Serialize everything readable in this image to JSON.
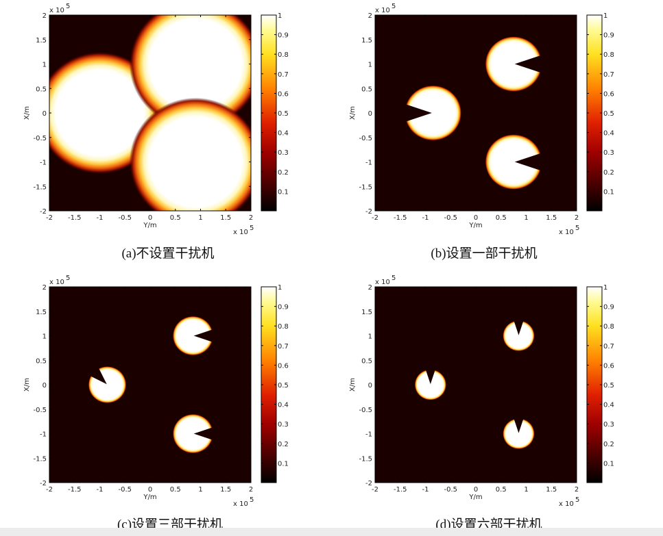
{
  "chart_data": [
    {
      "type": "heatmap",
      "caption": "(a)不设置干扰机",
      "xlabel": "Y/m",
      "ylabel": "X/m",
      "x_exponent": "x 10",
      "x_exponent_power": "5",
      "y_exponent": "x 10",
      "y_exponent_power": "5",
      "xlim": [
        -2,
        2
      ],
      "ylim": [
        -2,
        2
      ],
      "xticks": [
        "-2",
        "-1.5",
        "-1",
        "-0.5",
        "0",
        "0.5",
        "1",
        "1.5",
        "2"
      ],
      "yticks": [
        "2",
        "1.5",
        "1",
        "0.5",
        "0",
        "-0.5",
        "-1",
        "-1.5",
        "-2"
      ],
      "colorbar": {
        "range": [
          0,
          1
        ],
        "ticks": [
          "1",
          "0.9",
          "0.8",
          "0.7",
          "0.6",
          "0.5",
          "0.4",
          "0.3",
          "0.2",
          "0.1"
        ]
      },
      "blobs": [
        {
          "x": -1.0,
          "y": 0.0,
          "r": 1.0,
          "notch": "none"
        },
        {
          "x": 0.9,
          "y": 1.0,
          "r": 1.05,
          "notch": "none"
        },
        {
          "x": 0.9,
          "y": -1.0,
          "r": 1.05,
          "notch": "none"
        }
      ]
    },
    {
      "type": "heatmap",
      "caption": "(b)设置一部干扰机",
      "xlabel": "Y/m",
      "ylabel": "X/m",
      "x_exponent": "x 10",
      "x_exponent_power": "5",
      "y_exponent": "x 10",
      "y_exponent_power": "5",
      "xlim": [
        -2,
        2
      ],
      "ylim": [
        -2,
        2
      ],
      "xticks": [
        "-2",
        "-1.5",
        "-1",
        "-0.5",
        "0",
        "0.5",
        "1",
        "1.5",
        "2"
      ],
      "yticks": [
        "2",
        "1.5",
        "1",
        "0.5",
        "0",
        "-0.5",
        "-1",
        "-1.5",
        "-2"
      ],
      "colorbar": {
        "range": [
          0,
          1
        ],
        "ticks": [
          "1",
          "0.9",
          "0.8",
          "0.7",
          "0.6",
          "0.5",
          "0.4",
          "0.3",
          "0.2",
          "0.1"
        ]
      },
      "blobs": [
        {
          "x": -0.85,
          "y": 0.0,
          "r": 0.45,
          "notch": "left"
        },
        {
          "x": 0.75,
          "y": 1.0,
          "r": 0.45,
          "notch": "right"
        },
        {
          "x": 0.75,
          "y": -1.0,
          "r": 0.45,
          "notch": "right"
        }
      ]
    },
    {
      "type": "heatmap",
      "caption": "(c)设置三部干扰机",
      "xlabel": "Y/m",
      "ylabel": "X/m",
      "x_exponent": "x 10",
      "x_exponent_power": "5",
      "y_exponent": "x 10",
      "y_exponent_power": "5",
      "xlim": [
        -2,
        2
      ],
      "ylim": [
        -2,
        2
      ],
      "xticks": [
        "-2",
        "-1.5",
        "-1",
        "-0.5",
        "0",
        "0.5",
        "1",
        "1.5",
        "2"
      ],
      "yticks": [
        "2",
        "1.5",
        "1",
        "0.5",
        "0",
        "-0.5",
        "-1",
        "-1.5",
        "-2"
      ],
      "colorbar": {
        "range": [
          0,
          1
        ],
        "ticks": [
          "1",
          "0.9",
          "0.8",
          "0.7",
          "0.6",
          "0.5",
          "0.4",
          "0.3",
          "0.2",
          "0.1"
        ]
      },
      "blobs": [
        {
          "x": -0.85,
          "y": 0.0,
          "r": 0.3,
          "notch": "upleft"
        },
        {
          "x": 0.85,
          "y": 1.0,
          "r": 0.32,
          "notch": "right"
        },
        {
          "x": 0.85,
          "y": -1.0,
          "r": 0.32,
          "notch": "right"
        }
      ]
    },
    {
      "type": "heatmap",
      "caption": "(d)设置六部干扰机",
      "xlabel": "Y/m",
      "ylabel": "X/m",
      "x_exponent": "x 10",
      "x_exponent_power": "5",
      "y_exponent": "x 10",
      "y_exponent_power": "5",
      "xlim": [
        -2,
        2
      ],
      "ylim": [
        -2,
        2
      ],
      "xticks": [
        "-2",
        "-1.5",
        "-1",
        "-0.5",
        "0",
        "0.5",
        "1",
        "1.5",
        "2"
      ],
      "yticks": [
        "2",
        "1.5",
        "1",
        "0.5",
        "0",
        "-0.5",
        "-1",
        "-1.5",
        "-2"
      ],
      "colorbar": {
        "range": [
          0,
          1
        ],
        "ticks": [
          "1",
          "0.9",
          "0.8",
          "0.7",
          "0.6",
          "0.5",
          "0.4",
          "0.3",
          "0.2",
          "0.1"
        ]
      },
      "blobs": [
        {
          "x": -0.9,
          "y": 0.0,
          "r": 0.25,
          "notch": "up"
        },
        {
          "x": 0.85,
          "y": 1.0,
          "r": 0.25,
          "notch": "up"
        },
        {
          "x": 0.85,
          "y": -1.0,
          "r": 0.25,
          "notch": "up"
        }
      ]
    }
  ]
}
